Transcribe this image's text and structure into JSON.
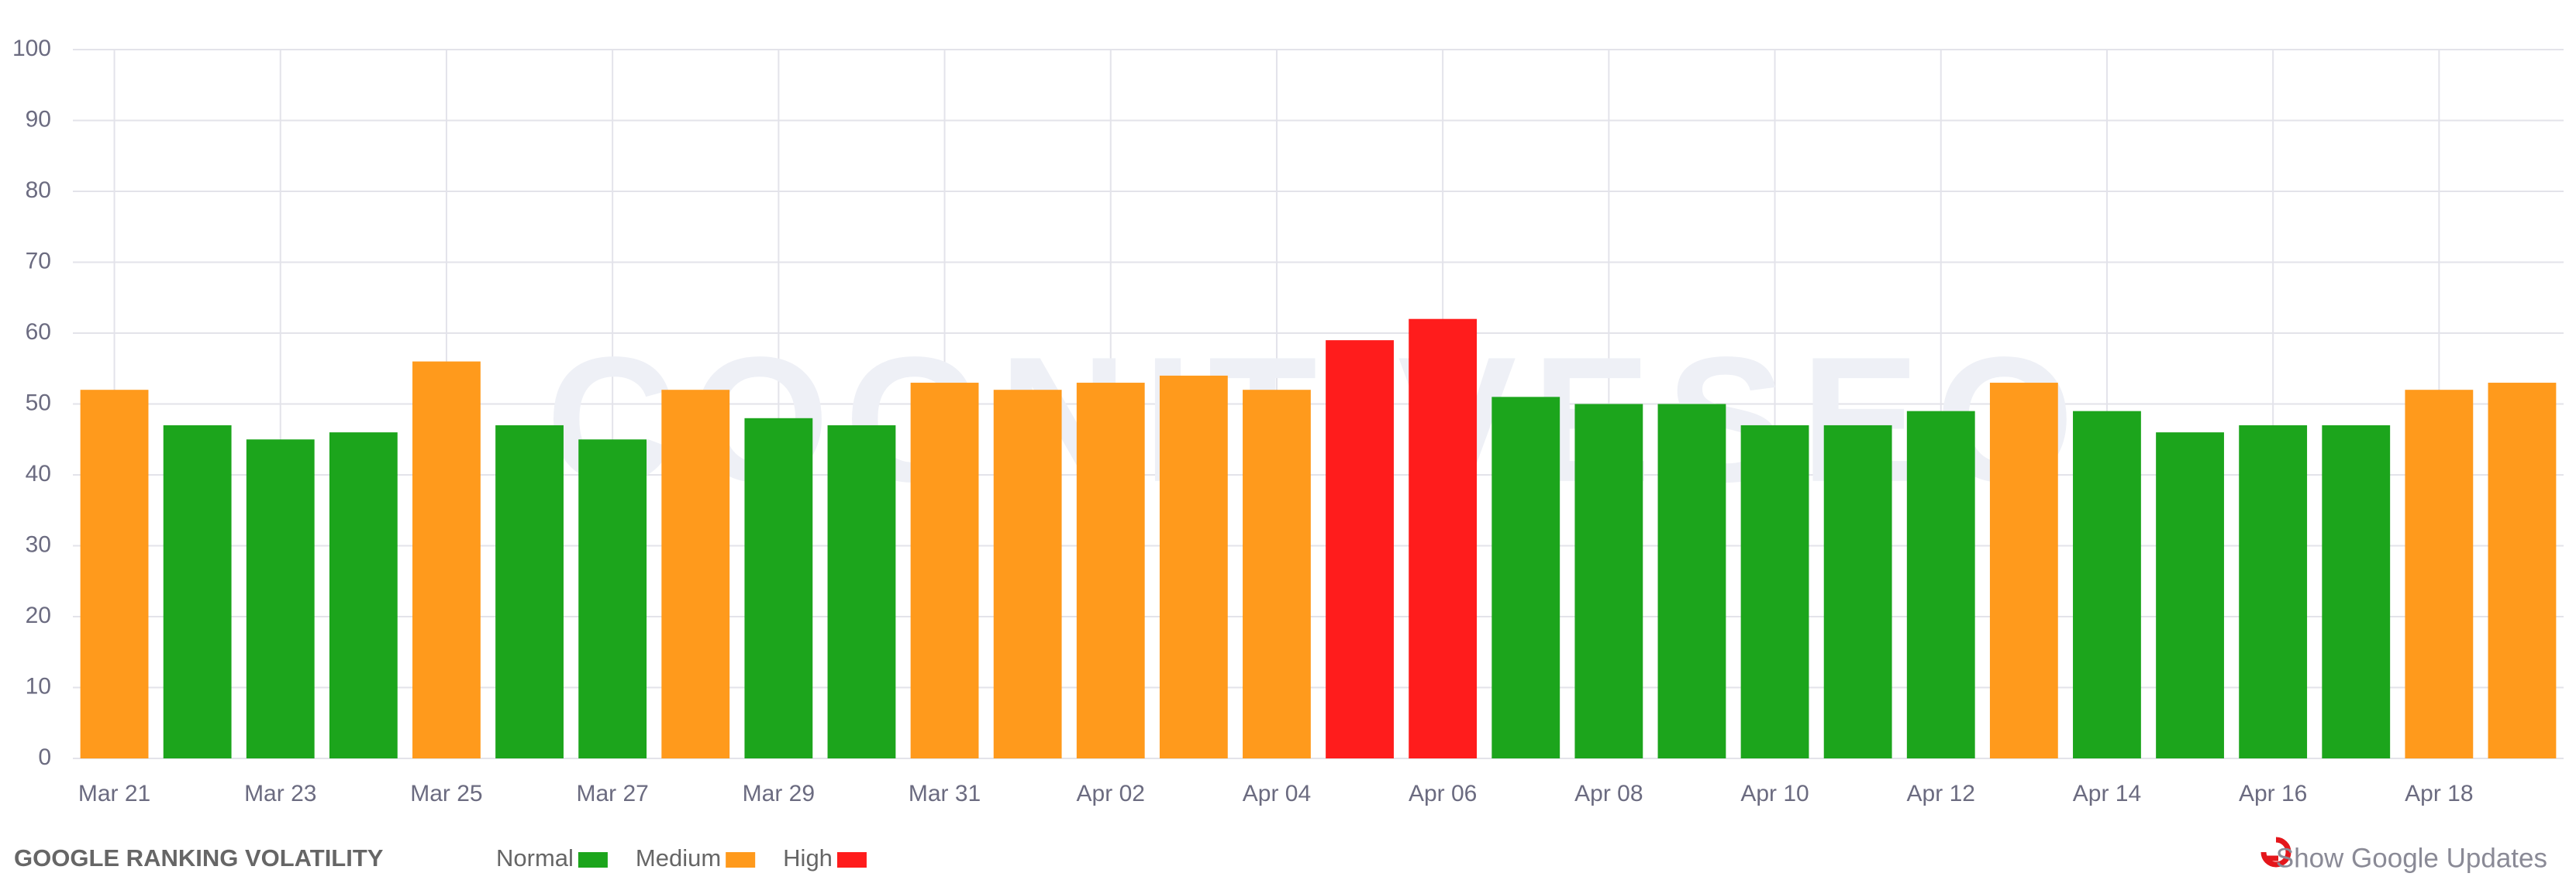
{
  "chart_data": {
    "type": "bar",
    "title": "GOOGLE RANKING VOLATILITY",
    "watermark": "COGNITIVESEO",
    "button": "Show Google Updates",
    "categories": [
      "Mar 21",
      null,
      "Mar 23",
      null,
      "Mar 25",
      null,
      "Mar 27",
      null,
      "Mar 29",
      null,
      "Mar 31",
      null,
      "Apr 02",
      null,
      "Apr 04",
      null,
      "Apr 06",
      null,
      "Apr 08",
      null,
      "Apr 10",
      null,
      "Apr 12",
      null,
      "Apr 14",
      null,
      "Apr 16",
      null,
      "Apr 18",
      null
    ],
    "values": [
      52,
      47,
      45,
      46,
      56,
      47,
      45,
      52,
      48,
      47,
      53,
      52,
      53,
      54,
      52,
      59,
      62,
      51,
      50,
      50,
      47,
      47,
      49,
      53,
      49,
      46,
      47,
      47,
      52,
      53
    ],
    "colors": [
      "#ff9a1c",
      "#1ca51c",
      "#1ca51c",
      "#1ca51c",
      "#ff9a1c",
      "#1ca51c",
      "#1ca51c",
      "#ff9a1c",
      "#1ca51c",
      "#1ca51c",
      "#ff9a1c",
      "#ff9a1c",
      "#ff9a1c",
      "#ff9a1c",
      "#ff9a1c",
      "#ff1c1c",
      "#ff1c1c",
      "#1ca51c",
      "#1ca51c",
      "#1ca51c",
      "#1ca51c",
      "#1ca51c",
      "#1ca51c",
      "#ff9a1c",
      "#1ca51c",
      "#1ca51c",
      "#1ca51c",
      "#1ca51c",
      "#ff9a1c",
      "#ff9a1c"
    ],
    "legend": [
      {
        "name": "Normal",
        "color": "#1ca51c"
      },
      {
        "name": "Medium",
        "color": "#ff9a1c"
      },
      {
        "name": "High",
        "color": "#ff1c1c"
      }
    ],
    "ylim": [
      0,
      100
    ],
    "yticks": [
      0,
      10,
      20,
      30,
      40,
      50,
      60,
      70,
      80,
      90,
      100
    ],
    "grid": true
  }
}
